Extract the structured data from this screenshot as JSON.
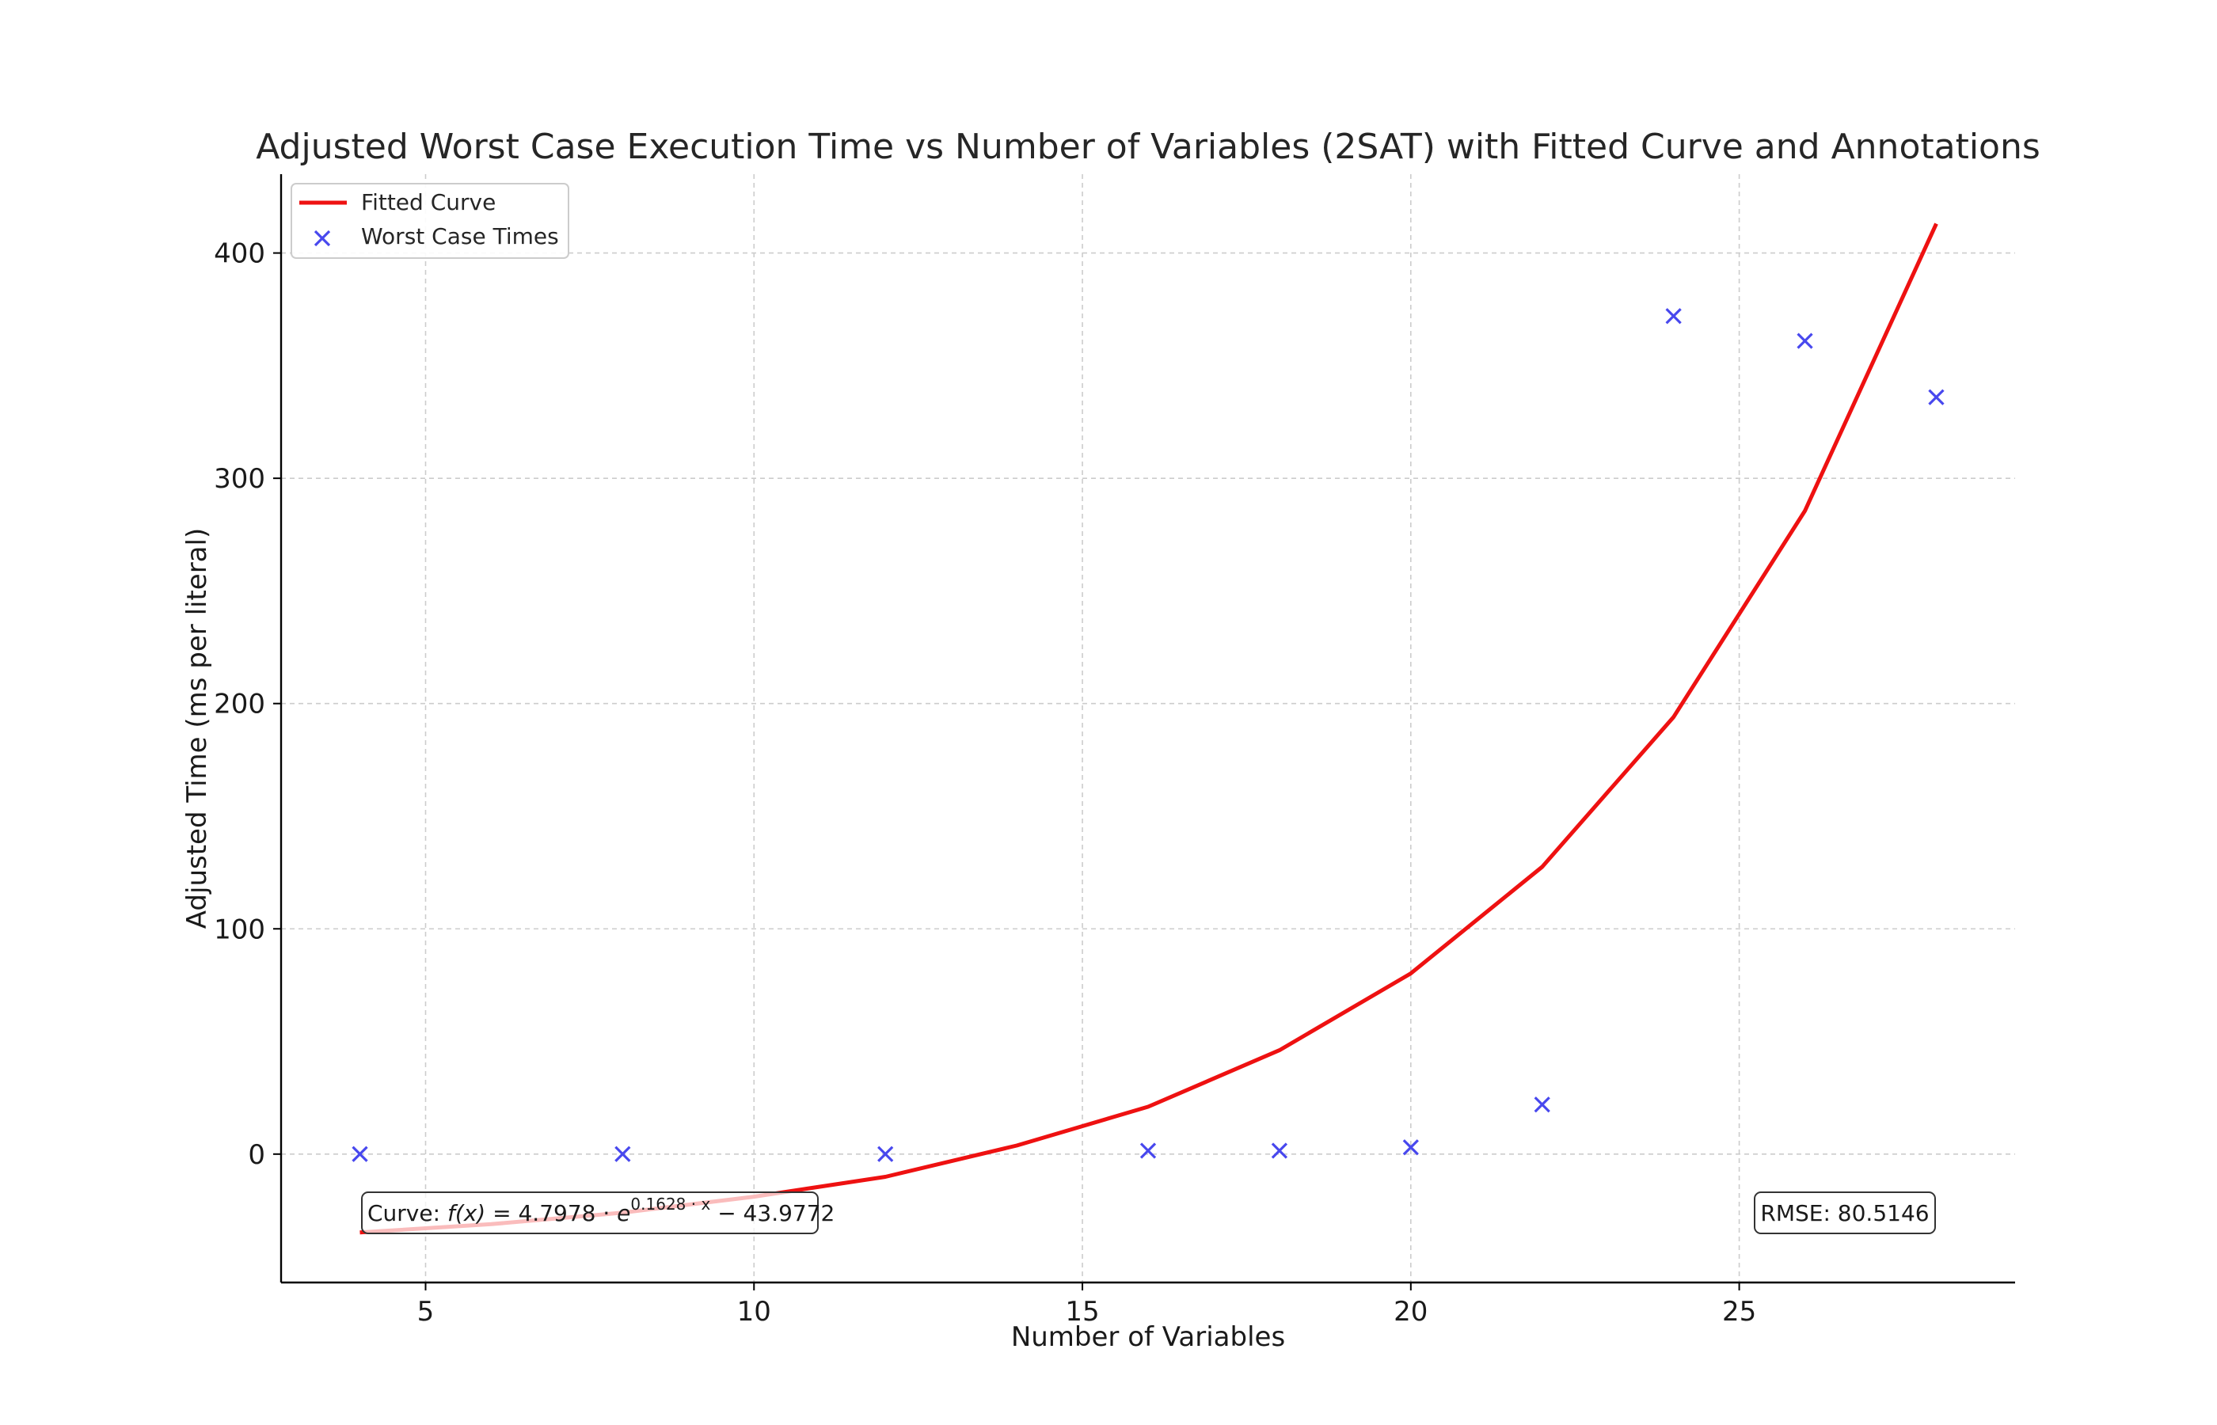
{
  "chart_data": {
    "type": "scatter",
    "title": "Adjusted Worst Case Execution Time vs Number of Variables (2SAT) with Fitted Curve and Annotations",
    "xlabel": "Number of Variables",
    "ylabel": "Adjusted Time (ms per literal)",
    "xlim": [
      2.8,
      29.2
    ],
    "ylim": [
      -57,
      435
    ],
    "xticks": [
      5,
      10,
      15,
      20,
      25
    ],
    "yticks": [
      0,
      100,
      200,
      300,
      400
    ],
    "grid": true,
    "legend_position": "top-left",
    "series": [
      {
        "name": "Fitted Curve",
        "kind": "line",
        "color": "#ee1111",
        "x": [
          4,
          6,
          8,
          10,
          12,
          14,
          16,
          18,
          20,
          22,
          24,
          26,
          28
        ],
        "y": [
          -34.8,
          -31.1,
          -26.0,
          -18.9,
          -10.1,
          3.8,
          21.0,
          46.1,
          80.2,
          127.5,
          194.0,
          285.5,
          413.0
        ]
      },
      {
        "name": "Worst Case Times",
        "kind": "scatter",
        "marker": "x",
        "color": "#4848ee",
        "x": [
          4,
          8,
          12,
          16,
          18,
          20,
          22,
          24,
          26,
          28
        ],
        "y": [
          0,
          0,
          0,
          1.5,
          1.5,
          3,
          22,
          372,
          361,
          336
        ]
      }
    ],
    "annotations": {
      "curve_prefix": "Curve: ",
      "curve_fx": "f",
      "curve_x_arg": "(x)",
      "curve_eq": " = 4.7978 · ",
      "curve_e": "e",
      "curve_exp": "0.1628 · x",
      "curve_tail": " − 43.9772",
      "rmse": "RMSE: 80.5146"
    }
  }
}
